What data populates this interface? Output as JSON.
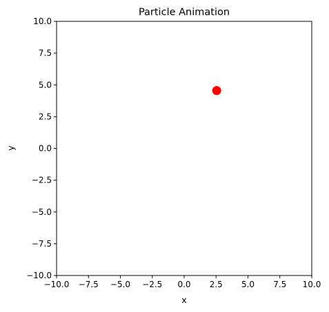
{
  "chart_data": {
    "type": "scatter",
    "title": "Particle Animation",
    "xlabel": "x",
    "ylabel": "y",
    "xlim": [
      -10,
      10
    ],
    "ylim": [
      -10,
      10
    ],
    "x_ticks": [
      -10,
      -7.5,
      -5,
      -2.5,
      0,
      2.5,
      5,
      7.5,
      10
    ],
    "x_tick_labels": [
      "−10.0",
      "−7.5",
      "−5.0",
      "−2.5",
      "0.0",
      "2.5",
      "5.0",
      "7.5",
      "10.0"
    ],
    "y_ticks": [
      10,
      7.5,
      5,
      2.5,
      0,
      -2.5,
      -5,
      -7.5,
      -10
    ],
    "y_tick_labels": [
      "10.0",
      "7.5",
      "5.0",
      "2.5",
      "0.0",
      "−2.5",
      "−5.0",
      "−7.5",
      "−10.0"
    ],
    "grid": false,
    "series": [
      {
        "points": [
          {
            "x": 2.55,
            "y": 4.55
          }
        ],
        "color": "#ff0000"
      }
    ]
  }
}
